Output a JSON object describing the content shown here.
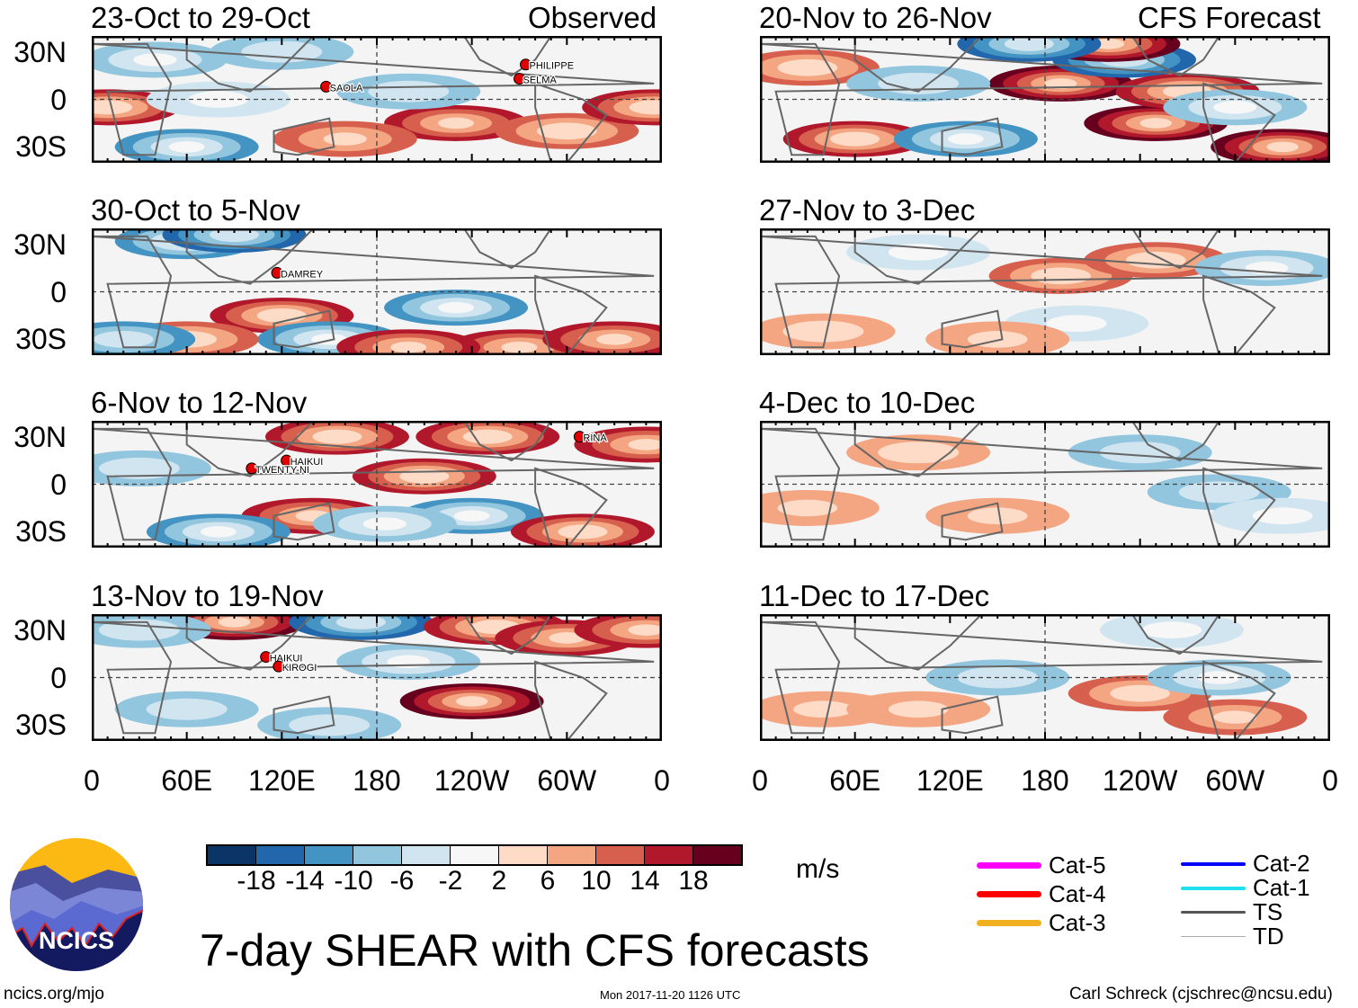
{
  "figure": {
    "title": "7-day SHEAR with CFS forecasts",
    "units": "m/s",
    "left_header": "Observed",
    "right_header": "CFS Forecast",
    "url": "ncics.org/mjo",
    "timestamp": "Mon 2017-11-20 1126 UTC",
    "author": "Carl Schreck (cjschrec@ncsu.edu)",
    "logo_text": "NCICS"
  },
  "lat_labels": [
    "30N",
    "0",
    "30S"
  ],
  "lon_labels": [
    "0",
    "60E",
    "120E",
    "180",
    "120W",
    "60W",
    "0"
  ],
  "colorbar": {
    "colors": [
      "#0b3566",
      "#2266ac",
      "#4393c3",
      "#92c5de",
      "#d1e5f0",
      "#f7f7f7",
      "#fddbc7",
      "#f4a582",
      "#d6604d",
      "#b2182b",
      "#67001f"
    ],
    "labels": [
      "-18",
      "-14",
      "-10",
      "-6",
      "-2",
      "2",
      "6",
      "10",
      "14",
      "18"
    ]
  },
  "legend": [
    {
      "label": "Cat-5",
      "color": "#ff00ff"
    },
    {
      "label": "Cat-4",
      "color": "#ff0000"
    },
    {
      "label": "Cat-3",
      "color": "#f0b020"
    },
    {
      "label": "Cat-2",
      "color": "#0000ff"
    },
    {
      "label": "Cat-1",
      "color": "#20e0f0"
    },
    {
      "label": "TS",
      "color": "#555555"
    },
    {
      "label": "TD",
      "color": "#aaaaaa"
    }
  ],
  "panels": [
    {
      "title": "23-Oct to 29-Oct",
      "type": "observed",
      "storms": [
        {
          "name": "SAOLA",
          "lon": 148,
          "lat": 8
        },
        {
          "name": "PHILIPPE",
          "lon": 274,
          "lat": 22
        },
        {
          "name": "SELMA",
          "lon": 270,
          "lat": 13
        }
      ],
      "anomalies": [
        [
          10,
          -5,
          16
        ],
        [
          60,
          -30,
          -14
        ],
        [
          40,
          25,
          -10
        ],
        [
          230,
          -15,
          14
        ],
        [
          300,
          -20,
          12
        ],
        [
          355,
          -5,
          16
        ],
        [
          160,
          -25,
          10
        ],
        [
          80,
          0,
          -6
        ],
        [
          200,
          5,
          -8
        ],
        [
          120,
          30,
          -8
        ]
      ]
    },
    {
      "title": "30-Oct to 5-Nov",
      "type": "observed",
      "storms": [
        {
          "name": "DAMREY",
          "lon": 117,
          "lat": 12
        }
      ],
      "anomalies": [
        [
          60,
          32,
          -14
        ],
        [
          90,
          36,
          -16
        ],
        [
          120,
          -15,
          16
        ],
        [
          150,
          -30,
          -14
        ],
        [
          230,
          -10,
          -14
        ],
        [
          270,
          -35,
          14
        ],
        [
          330,
          -30,
          14
        ],
        [
          60,
          -30,
          12
        ],
        [
          20,
          -30,
          -12
        ],
        [
          200,
          -35,
          14
        ]
      ]
    },
    {
      "title": "6-Nov to 12-Nov",
      "type": "observed",
      "storms": [
        {
          "name": "RINA",
          "lon": 308,
          "lat": 30
        },
        {
          "name": "HAIKUI",
          "lon": 123,
          "lat": 15
        },
        {
          "name": "TWENTY-NI",
          "lon": 101,
          "lat": 10
        }
      ],
      "anomalies": [
        [
          155,
          30,
          16
        ],
        [
          210,
          5,
          16
        ],
        [
          240,
          -20,
          -14
        ],
        [
          140,
          -20,
          14
        ],
        [
          80,
          -30,
          -14
        ],
        [
          310,
          -30,
          16
        ],
        [
          250,
          30,
          16
        ],
        [
          350,
          25,
          14
        ],
        [
          30,
          10,
          -8
        ],
        [
          185,
          -25,
          -10
        ]
      ]
    },
    {
      "title": "13-Nov to 19-Nov",
      "type": "observed",
      "storms": [
        {
          "name": "HAIKUI",
          "lon": 110,
          "lat": 13
        },
        {
          "name": "KIROGI",
          "lon": 118,
          "lat": 7
        }
      ],
      "anomalies": [
        [
          90,
          35,
          18
        ],
        [
          170,
          35,
          -16
        ],
        [
          240,
          -15,
          18
        ],
        [
          255,
          32,
          16
        ],
        [
          300,
          25,
          14
        ],
        [
          200,
          10,
          -10
        ],
        [
          30,
          30,
          -8
        ],
        [
          150,
          -30,
          -8
        ],
        [
          350,
          30,
          14
        ],
        [
          60,
          -20,
          -8
        ]
      ]
    },
    {
      "title": "20-Nov to 26-Nov",
      "type": "forecast",
      "storms": [],
      "anomalies": [
        [
          190,
          10,
          18
        ],
        [
          230,
          25,
          -16
        ],
        [
          220,
          35,
          18
        ],
        [
          250,
          -15,
          18
        ],
        [
          270,
          5,
          16
        ],
        [
          330,
          -30,
          18
        ],
        [
          60,
          -25,
          16
        ],
        [
          130,
          -25,
          -14
        ],
        [
          30,
          20,
          12
        ],
        [
          100,
          10,
          -8
        ],
        [
          170,
          35,
          -16
        ],
        [
          300,
          -5,
          -10
        ]
      ]
    },
    {
      "title": "27-Nov to 3-Dec",
      "type": "forecast",
      "storms": [],
      "anomalies": [
        [
          190,
          10,
          12
        ],
        [
          250,
          20,
          12
        ],
        [
          200,
          -20,
          -6
        ],
        [
          320,
          15,
          -10
        ],
        [
          100,
          25,
          -6
        ],
        [
          40,
          -25,
          8
        ],
        [
          150,
          -30,
          6
        ]
      ]
    },
    {
      "title": "4-Dec to 10-Dec",
      "type": "forecast",
      "storms": [],
      "anomalies": [
        [
          100,
          20,
          8
        ],
        [
          240,
          20,
          -8
        ],
        [
          290,
          -5,
          -8
        ],
        [
          150,
          -20,
          6
        ],
        [
          30,
          -15,
          6
        ],
        [
          330,
          -20,
          -6
        ]
      ]
    },
    {
      "title": "11-Dec to 17-Dec",
      "type": "forecast",
      "storms": [],
      "anomalies": [
        [
          240,
          -10,
          12
        ],
        [
          300,
          -25,
          10
        ],
        [
          290,
          0,
          -10
        ],
        [
          150,
          0,
          -8
        ],
        [
          260,
          30,
          -6
        ],
        [
          40,
          -20,
          6
        ],
        [
          100,
          -20,
          6
        ]
      ]
    }
  ]
}
